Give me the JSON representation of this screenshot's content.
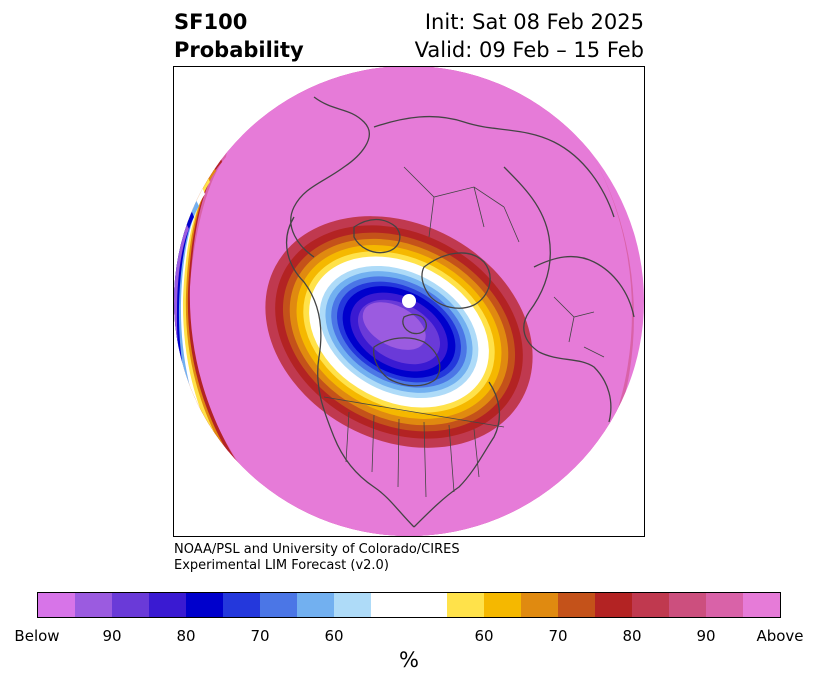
{
  "title": {
    "left_line1": "SF100",
    "left_line2": "Probability",
    "right_line1": "Init: Sat 08 Feb 2025",
    "right_line2": "Valid: 09 Feb – 15 Feb"
  },
  "credit": {
    "line1": "NOAA/PSL and University of Colorado/CIRES",
    "line2": "Experimental LIM Forecast (v2.0)"
  },
  "colorbar": {
    "colors": [
      "#d774e8",
      "#9b5be0",
      "#6a3ad8",
      "#3a1ad2",
      "#0000cc",
      "#2438dc",
      "#4b76e6",
      "#72b0f0",
      "#aedbf8",
      "#ffffff",
      "#ffe24a",
      "#f5b800",
      "#e08a10",
      "#c4521a",
      "#b32323",
      "#c0394f",
      "#cc4f7e",
      "#d962a8",
      "#e67bd8"
    ],
    "tick_labels": [
      "Below",
      "90",
      "80",
      "70",
      "60",
      "60",
      "70",
      "80",
      "90",
      "Above"
    ],
    "unit": "%"
  },
  "map": {
    "projection": "north-polar-stereographic",
    "colors": {
      "above": "#e67bd8",
      "coast": "#444444",
      "marker": "#ffffff"
    }
  }
}
